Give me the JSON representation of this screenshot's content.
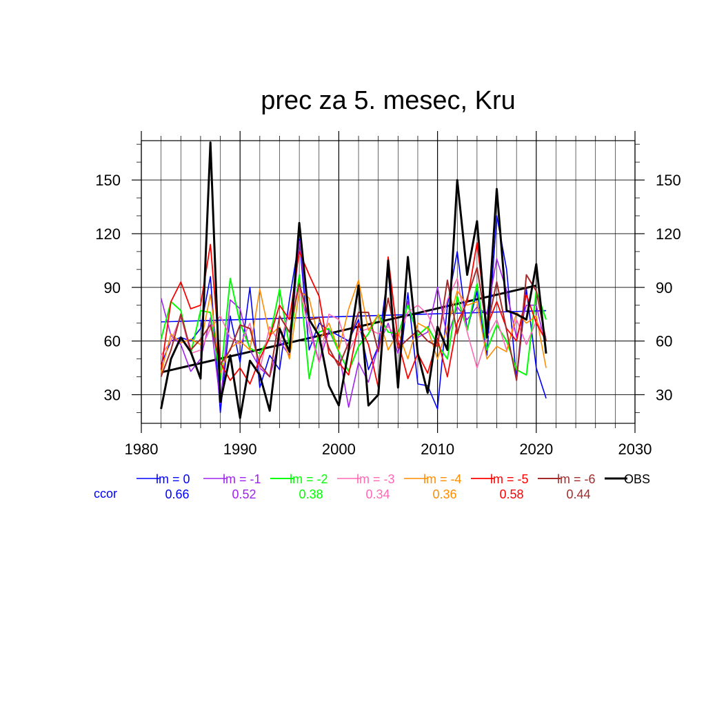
{
  "chart_data": {
    "type": "line",
    "title": "prec za 5. mesec, Kru",
    "xlabel": "",
    "ylabel": "",
    "xlim": [
      1980,
      2030
    ],
    "ylim": [
      14,
      172
    ],
    "x_ticks": [
      1980,
      1990,
      2000,
      2010,
      2020,
      2030
    ],
    "y_ticks": [
      30,
      60,
      90,
      120,
      150
    ],
    "grid": true,
    "legend_position": "bottom",
    "ccor_label": "ccor",
    "x": [
      1982,
      1983,
      1984,
      1985,
      1986,
      1987,
      1988,
      1989,
      1990,
      1991,
      1992,
      1993,
      1994,
      1995,
      1996,
      1997,
      1998,
      1999,
      2000,
      2001,
      2002,
      2003,
      2004,
      2005,
      2006,
      2007,
      2008,
      2009,
      2010,
      2011,
      2012,
      2013,
      2014,
      2015,
      2016,
      2017,
      2018,
      2019,
      2020,
      2021
    ],
    "series": [
      {
        "name": "lm = 0",
        "color": "#0000ff",
        "width": 1.6,
        "ccor": "0.66",
        "values": [
          47,
          60,
          62,
          60,
          67,
          96,
          20,
          74,
          48,
          90,
          34,
          52,
          44,
          83,
          117,
          55,
          70,
          66,
          63,
          60,
          72,
          44,
          57,
          99,
          37,
          87,
          36,
          35,
          22,
          80,
          110,
          66,
          88,
          52,
          130,
          100,
          38,
          89,
          45,
          28
        ]
      },
      {
        "name": "lm = -1",
        "color": "#a020f0",
        "width": 1.6,
        "ccor": "0.52",
        "values": [
          84,
          63,
          58,
          43,
          50,
          73,
          25,
          83,
          78,
          55,
          45,
          40,
          60,
          52,
          116,
          70,
          48,
          66,
          54,
          23,
          48,
          37,
          57,
          70,
          53,
          82,
          62,
          65,
          90,
          62,
          79,
          72,
          79,
          75,
          106,
          88,
          62,
          80,
          80,
          56
        ]
      },
      {
        "name": "lm = -2",
        "color": "#00ff00",
        "width": 2.0,
        "ccor": "0.38",
        "values": [
          61,
          82,
          77,
          53,
          77,
          76,
          38,
          95,
          70,
          56,
          53,
          62,
          89,
          57,
          97,
          39,
          65,
          67,
          54,
          43,
          57,
          64,
          75,
          65,
          64,
          80,
          63,
          68,
          58,
          50,
          85,
          66,
          92,
          55,
          69,
          60,
          44,
          41,
          88,
          72
        ]
      },
      {
        "name": "lm = -3",
        "color": "#ff69b4",
        "width": 1.6,
        "ccor": "0.34",
        "values": [
          52,
          60,
          74,
          53,
          55,
          67,
          74,
          62,
          58,
          70,
          44,
          68,
          59,
          76,
          90,
          66,
          48,
          75,
          72,
          54,
          65,
          67,
          64,
          68,
          62,
          76,
          80,
          75,
          62,
          83,
          95,
          65,
          45,
          62,
          72,
          55,
          72,
          58,
          71,
          62
        ]
      },
      {
        "name": "lm = -4",
        "color": "#ff8c00",
        "width": 1.6,
        "ccor": "0.36",
        "values": [
          42,
          64,
          59,
          61,
          58,
          86,
          42,
          56,
          60,
          55,
          89,
          63,
          68,
          50,
          88,
          84,
          60,
          70,
          55,
          78,
          94,
          66,
          75,
          55,
          65,
          50,
          70,
          67,
          50,
          68,
          88,
          80,
          82,
          50,
          57,
          54,
          76,
          70,
          74,
          45
        ]
      },
      {
        "name": "lm = -5",
        "color": "#ff0000",
        "width": 1.8,
        "ccor": "0.58",
        "values": [
          44,
          82,
          93,
          78,
          80,
          114,
          48,
          38,
          45,
          36,
          50,
          62,
          80,
          72,
          110,
          97,
          85,
          53,
          48,
          41,
          70,
          58,
          34,
          107,
          60,
          39,
          53,
          42,
          61,
          40,
          70,
          82,
          115,
          68,
          82,
          67,
          60,
          86,
          70,
          60
        ]
      },
      {
        "name": "lm = -6",
        "color": "#a52a2a",
        "width": 2.0,
        "ccor": "0.44",
        "values": [
          40,
          55,
          75,
          55,
          61,
          69,
          47,
          55,
          69,
          67,
          47,
          40,
          74,
          65,
          92,
          72,
          73,
          56,
          46,
          59,
          76,
          76,
          54,
          84,
          56,
          61,
          66,
          60,
          57,
          94,
          64,
          84,
          101,
          67,
          93,
          66,
          38,
          97,
          88,
          60
        ]
      },
      {
        "name": "OBS",
        "color": "#000000",
        "width": 3.0,
        "ccor": "",
        "values": [
          22,
          50,
          62,
          54,
          39,
          171,
          26,
          52,
          17,
          49,
          41,
          21,
          67,
          54,
          126,
          72,
          63,
          35,
          24,
          55,
          91,
          24,
          30,
          105,
          34,
          107,
          53,
          31,
          68,
          55,
          150,
          97,
          127,
          62,
          145,
          77,
          75,
          72,
          103,
          53
        ]
      }
    ],
    "trend_lines": [
      {
        "series": "lm = 0",
        "color": "#0000ff",
        "width": 1.6,
        "x": [
          1982,
          2021
        ],
        "y": [
          70.7,
          77.0
        ]
      },
      {
        "series": "OBS",
        "color": "#000000",
        "width": 3.0,
        "x": [
          1982,
          2020
        ],
        "y": [
          42.5,
          91.0
        ]
      }
    ]
  }
}
